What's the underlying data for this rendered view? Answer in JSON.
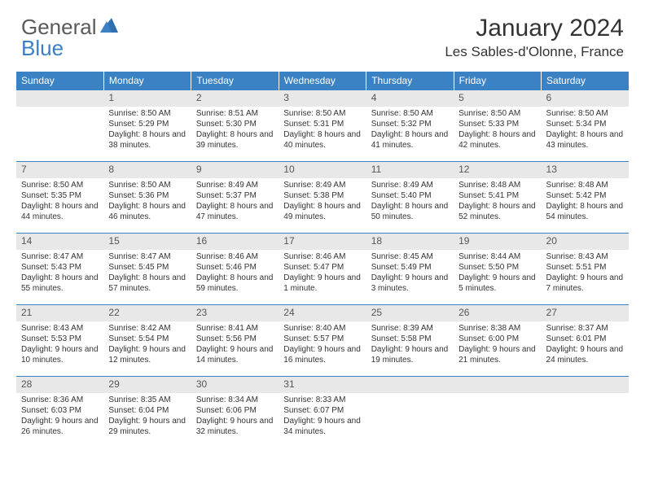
{
  "brand": {
    "general": "General",
    "blue": "Blue"
  },
  "title": "January 2024",
  "location": "Les Sables-d'Olonne, France",
  "colors": {
    "header_bg": "#3b82c4",
    "header_text": "#ffffff",
    "daynum_bg": "#e8e8e8",
    "border": "#3b82c4",
    "logo_gray": "#5a5a5a",
    "logo_blue": "#3b7fc4"
  },
  "weekdays": [
    "Sunday",
    "Monday",
    "Tuesday",
    "Wednesday",
    "Thursday",
    "Friday",
    "Saturday"
  ],
  "weeks": [
    [
      null,
      {
        "n": "1",
        "sr": "8:50 AM",
        "ss": "5:29 PM",
        "dl": "8 hours and 38 minutes."
      },
      {
        "n": "2",
        "sr": "8:51 AM",
        "ss": "5:30 PM",
        "dl": "8 hours and 39 minutes."
      },
      {
        "n": "3",
        "sr": "8:50 AM",
        "ss": "5:31 PM",
        "dl": "8 hours and 40 minutes."
      },
      {
        "n": "4",
        "sr": "8:50 AM",
        "ss": "5:32 PM",
        "dl": "8 hours and 41 minutes."
      },
      {
        "n": "5",
        "sr": "8:50 AM",
        "ss": "5:33 PM",
        "dl": "8 hours and 42 minutes."
      },
      {
        "n": "6",
        "sr": "8:50 AM",
        "ss": "5:34 PM",
        "dl": "8 hours and 43 minutes."
      }
    ],
    [
      {
        "n": "7",
        "sr": "8:50 AM",
        "ss": "5:35 PM",
        "dl": "8 hours and 44 minutes."
      },
      {
        "n": "8",
        "sr": "8:50 AM",
        "ss": "5:36 PM",
        "dl": "8 hours and 46 minutes."
      },
      {
        "n": "9",
        "sr": "8:49 AM",
        "ss": "5:37 PM",
        "dl": "8 hours and 47 minutes."
      },
      {
        "n": "10",
        "sr": "8:49 AM",
        "ss": "5:38 PM",
        "dl": "8 hours and 49 minutes."
      },
      {
        "n": "11",
        "sr": "8:49 AM",
        "ss": "5:40 PM",
        "dl": "8 hours and 50 minutes."
      },
      {
        "n": "12",
        "sr": "8:48 AM",
        "ss": "5:41 PM",
        "dl": "8 hours and 52 minutes."
      },
      {
        "n": "13",
        "sr": "8:48 AM",
        "ss": "5:42 PM",
        "dl": "8 hours and 54 minutes."
      }
    ],
    [
      {
        "n": "14",
        "sr": "8:47 AM",
        "ss": "5:43 PM",
        "dl": "8 hours and 55 minutes."
      },
      {
        "n": "15",
        "sr": "8:47 AM",
        "ss": "5:45 PM",
        "dl": "8 hours and 57 minutes."
      },
      {
        "n": "16",
        "sr": "8:46 AM",
        "ss": "5:46 PM",
        "dl": "8 hours and 59 minutes."
      },
      {
        "n": "17",
        "sr": "8:46 AM",
        "ss": "5:47 PM",
        "dl": "9 hours and 1 minute."
      },
      {
        "n": "18",
        "sr": "8:45 AM",
        "ss": "5:49 PM",
        "dl": "9 hours and 3 minutes."
      },
      {
        "n": "19",
        "sr": "8:44 AM",
        "ss": "5:50 PM",
        "dl": "9 hours and 5 minutes."
      },
      {
        "n": "20",
        "sr": "8:43 AM",
        "ss": "5:51 PM",
        "dl": "9 hours and 7 minutes."
      }
    ],
    [
      {
        "n": "21",
        "sr": "8:43 AM",
        "ss": "5:53 PM",
        "dl": "9 hours and 10 minutes."
      },
      {
        "n": "22",
        "sr": "8:42 AM",
        "ss": "5:54 PM",
        "dl": "9 hours and 12 minutes."
      },
      {
        "n": "23",
        "sr": "8:41 AM",
        "ss": "5:56 PM",
        "dl": "9 hours and 14 minutes."
      },
      {
        "n": "24",
        "sr": "8:40 AM",
        "ss": "5:57 PM",
        "dl": "9 hours and 16 minutes."
      },
      {
        "n": "25",
        "sr": "8:39 AM",
        "ss": "5:58 PM",
        "dl": "9 hours and 19 minutes."
      },
      {
        "n": "26",
        "sr": "8:38 AM",
        "ss": "6:00 PM",
        "dl": "9 hours and 21 minutes."
      },
      {
        "n": "27",
        "sr": "8:37 AM",
        "ss": "6:01 PM",
        "dl": "9 hours and 24 minutes."
      }
    ],
    [
      {
        "n": "28",
        "sr": "8:36 AM",
        "ss": "6:03 PM",
        "dl": "9 hours and 26 minutes."
      },
      {
        "n": "29",
        "sr": "8:35 AM",
        "ss": "6:04 PM",
        "dl": "9 hours and 29 minutes."
      },
      {
        "n": "30",
        "sr": "8:34 AM",
        "ss": "6:06 PM",
        "dl": "9 hours and 32 minutes."
      },
      {
        "n": "31",
        "sr": "8:33 AM",
        "ss": "6:07 PM",
        "dl": "9 hours and 34 minutes."
      },
      null,
      null,
      null
    ]
  ],
  "labels": {
    "sunrise": "Sunrise: ",
    "sunset": "Sunset: ",
    "daylight": "Daylight: "
  }
}
